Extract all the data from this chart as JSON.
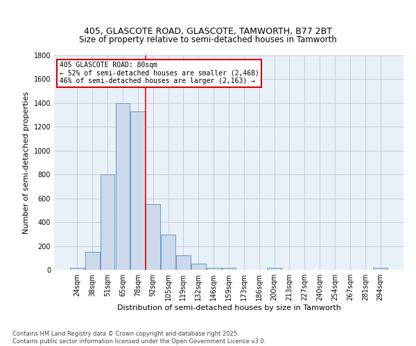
{
  "title_line1": "405, GLASCOTE ROAD, GLASCOTE, TAMWORTH, B77 2BT",
  "title_line2": "Size of property relative to semi-detached houses in Tamworth",
  "xlabel": "Distribution of semi-detached houses by size in Tamworth",
  "ylabel": "Number of semi-detached properties",
  "categories": [
    "24sqm",
    "38sqm",
    "51sqm",
    "65sqm",
    "78sqm",
    "92sqm",
    "105sqm",
    "119sqm",
    "132sqm",
    "146sqm",
    "159sqm",
    "173sqm",
    "186sqm",
    "200sqm",
    "213sqm",
    "227sqm",
    "240sqm",
    "254sqm",
    "267sqm",
    "281sqm",
    "294sqm"
  ],
  "values": [
    20,
    150,
    800,
    1400,
    1330,
    550,
    295,
    120,
    50,
    20,
    20,
    0,
    0,
    15,
    0,
    0,
    0,
    0,
    0,
    0,
    15
  ],
  "bar_color": "#ccd9ea",
  "bar_edge_color": "#6699cc",
  "background_color": "#ffffff",
  "plot_bg_color": "#e8f0f8",
  "grid_color": "#c0c8d8",
  "red_line_index": 4.5,
  "annotation_line1": "405 GLASCOTE ROAD: 80sqm",
  "annotation_line2": "← 52% of semi-detached houses are smaller (2,468)",
  "annotation_line3": "46% of semi-detached houses are larger (2,163) →",
  "annotation_box_color": "#ffffff",
  "annotation_box_edge": "#cc0000",
  "footer_line1": "Contains HM Land Registry data © Crown copyright and database right 2025.",
  "footer_line2": "Contains public sector information licensed under the Open Government Licence v3.0.",
  "ylim": [
    0,
    1800
  ],
  "yticks": [
    0,
    200,
    400,
    600,
    800,
    1000,
    1200,
    1400,
    1600,
    1800
  ],
  "title_fontsize": 9,
  "xlabel_fontsize": 8,
  "ylabel_fontsize": 8,
  "tick_fontsize": 7,
  "annotation_fontsize": 7,
  "footer_fontsize": 6
}
